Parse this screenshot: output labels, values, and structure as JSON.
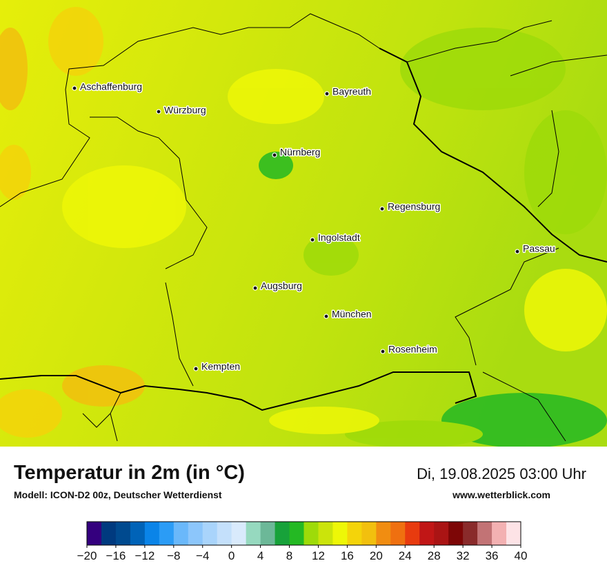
{
  "header": {
    "title": "Temperatur in 2m (in °C)",
    "subtitle": "Modell: ICON-D2 00z, Deutscher Wetterdienst",
    "date": "Di, 19.08.2025 03:00 Uhr",
    "website": "www.wetterblick.com"
  },
  "map": {
    "cities": [
      "Aschaffenburg",
      "Würzburg",
      "Bayreuth",
      "Nürnberg",
      "Regensburg",
      "Ingolstadt",
      "Passau",
      "Augsburg",
      "München",
      "Rosenheim",
      "Kempten"
    ]
  },
  "colorbar": {
    "lim": [
      -20,
      40
    ],
    "colors": [
      "#34007e",
      "#003a7f",
      "#004a8f",
      "#0063b8",
      "#0a84e8",
      "#2b9cf6",
      "#6ab8fa",
      "#8cc6fb",
      "#a9d4fb",
      "#c4e0fb",
      "#d9eafc",
      "#96d9bf",
      "#6cb898",
      "#17a23a",
      "#24b923",
      "#9edb09",
      "#cbe40b",
      "#eef707",
      "#f4d40a",
      "#f2c00e",
      "#f18d11",
      "#ef7010",
      "#e83b0f",
      "#c11616",
      "#aa1414",
      "#7d0606",
      "#8a2b2b",
      "#c27375",
      "#f3b1b2",
      "#fde3e6"
    ],
    "ticks": [
      {
        "value": -20,
        "label": "−20"
      },
      {
        "value": -16,
        "label": "−16"
      },
      {
        "value": -12,
        "label": "−12"
      },
      {
        "value": -8,
        "label": "−8"
      },
      {
        "value": -4,
        "label": "−4"
      },
      0,
      4,
      8,
      12,
      16,
      20,
      24,
      28,
      32,
      36,
      40
    ]
  }
}
